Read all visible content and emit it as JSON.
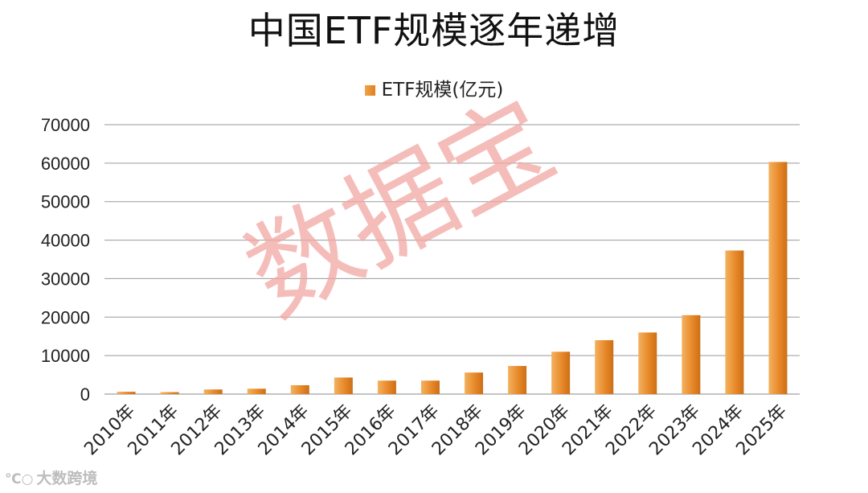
{
  "chart_data": {
    "type": "bar",
    "title": "中国ETF规模逐年递增",
    "legend": "ETF规模(亿元)",
    "legend_position": "top-center",
    "categories": [
      "2010年",
      "2011年",
      "2012年",
      "2013年",
      "2014年",
      "2015年",
      "2016年",
      "2017年",
      "2018年",
      "2019年",
      "2020年",
      "2021年",
      "2022年",
      "2023年",
      "2024年",
      "2025年"
    ],
    "series": [
      {
        "name": "ETF规模(亿元)",
        "values": [
          600,
          500,
          1200,
          1400,
          2300,
          4300,
          3500,
          3500,
          5600,
          7300,
          11000,
          14000,
          16000,
          20500,
          37300,
          60300
        ]
      }
    ],
    "ylim": [
      0,
      70000
    ],
    "yticks": [
      "0",
      "10000",
      "20000",
      "30000",
      "40000",
      "50000",
      "60000",
      "70000"
    ],
    "grid": true,
    "bar_color": "#e8892a"
  },
  "watermark": "数据宝",
  "footer_logo": "大数跨境"
}
